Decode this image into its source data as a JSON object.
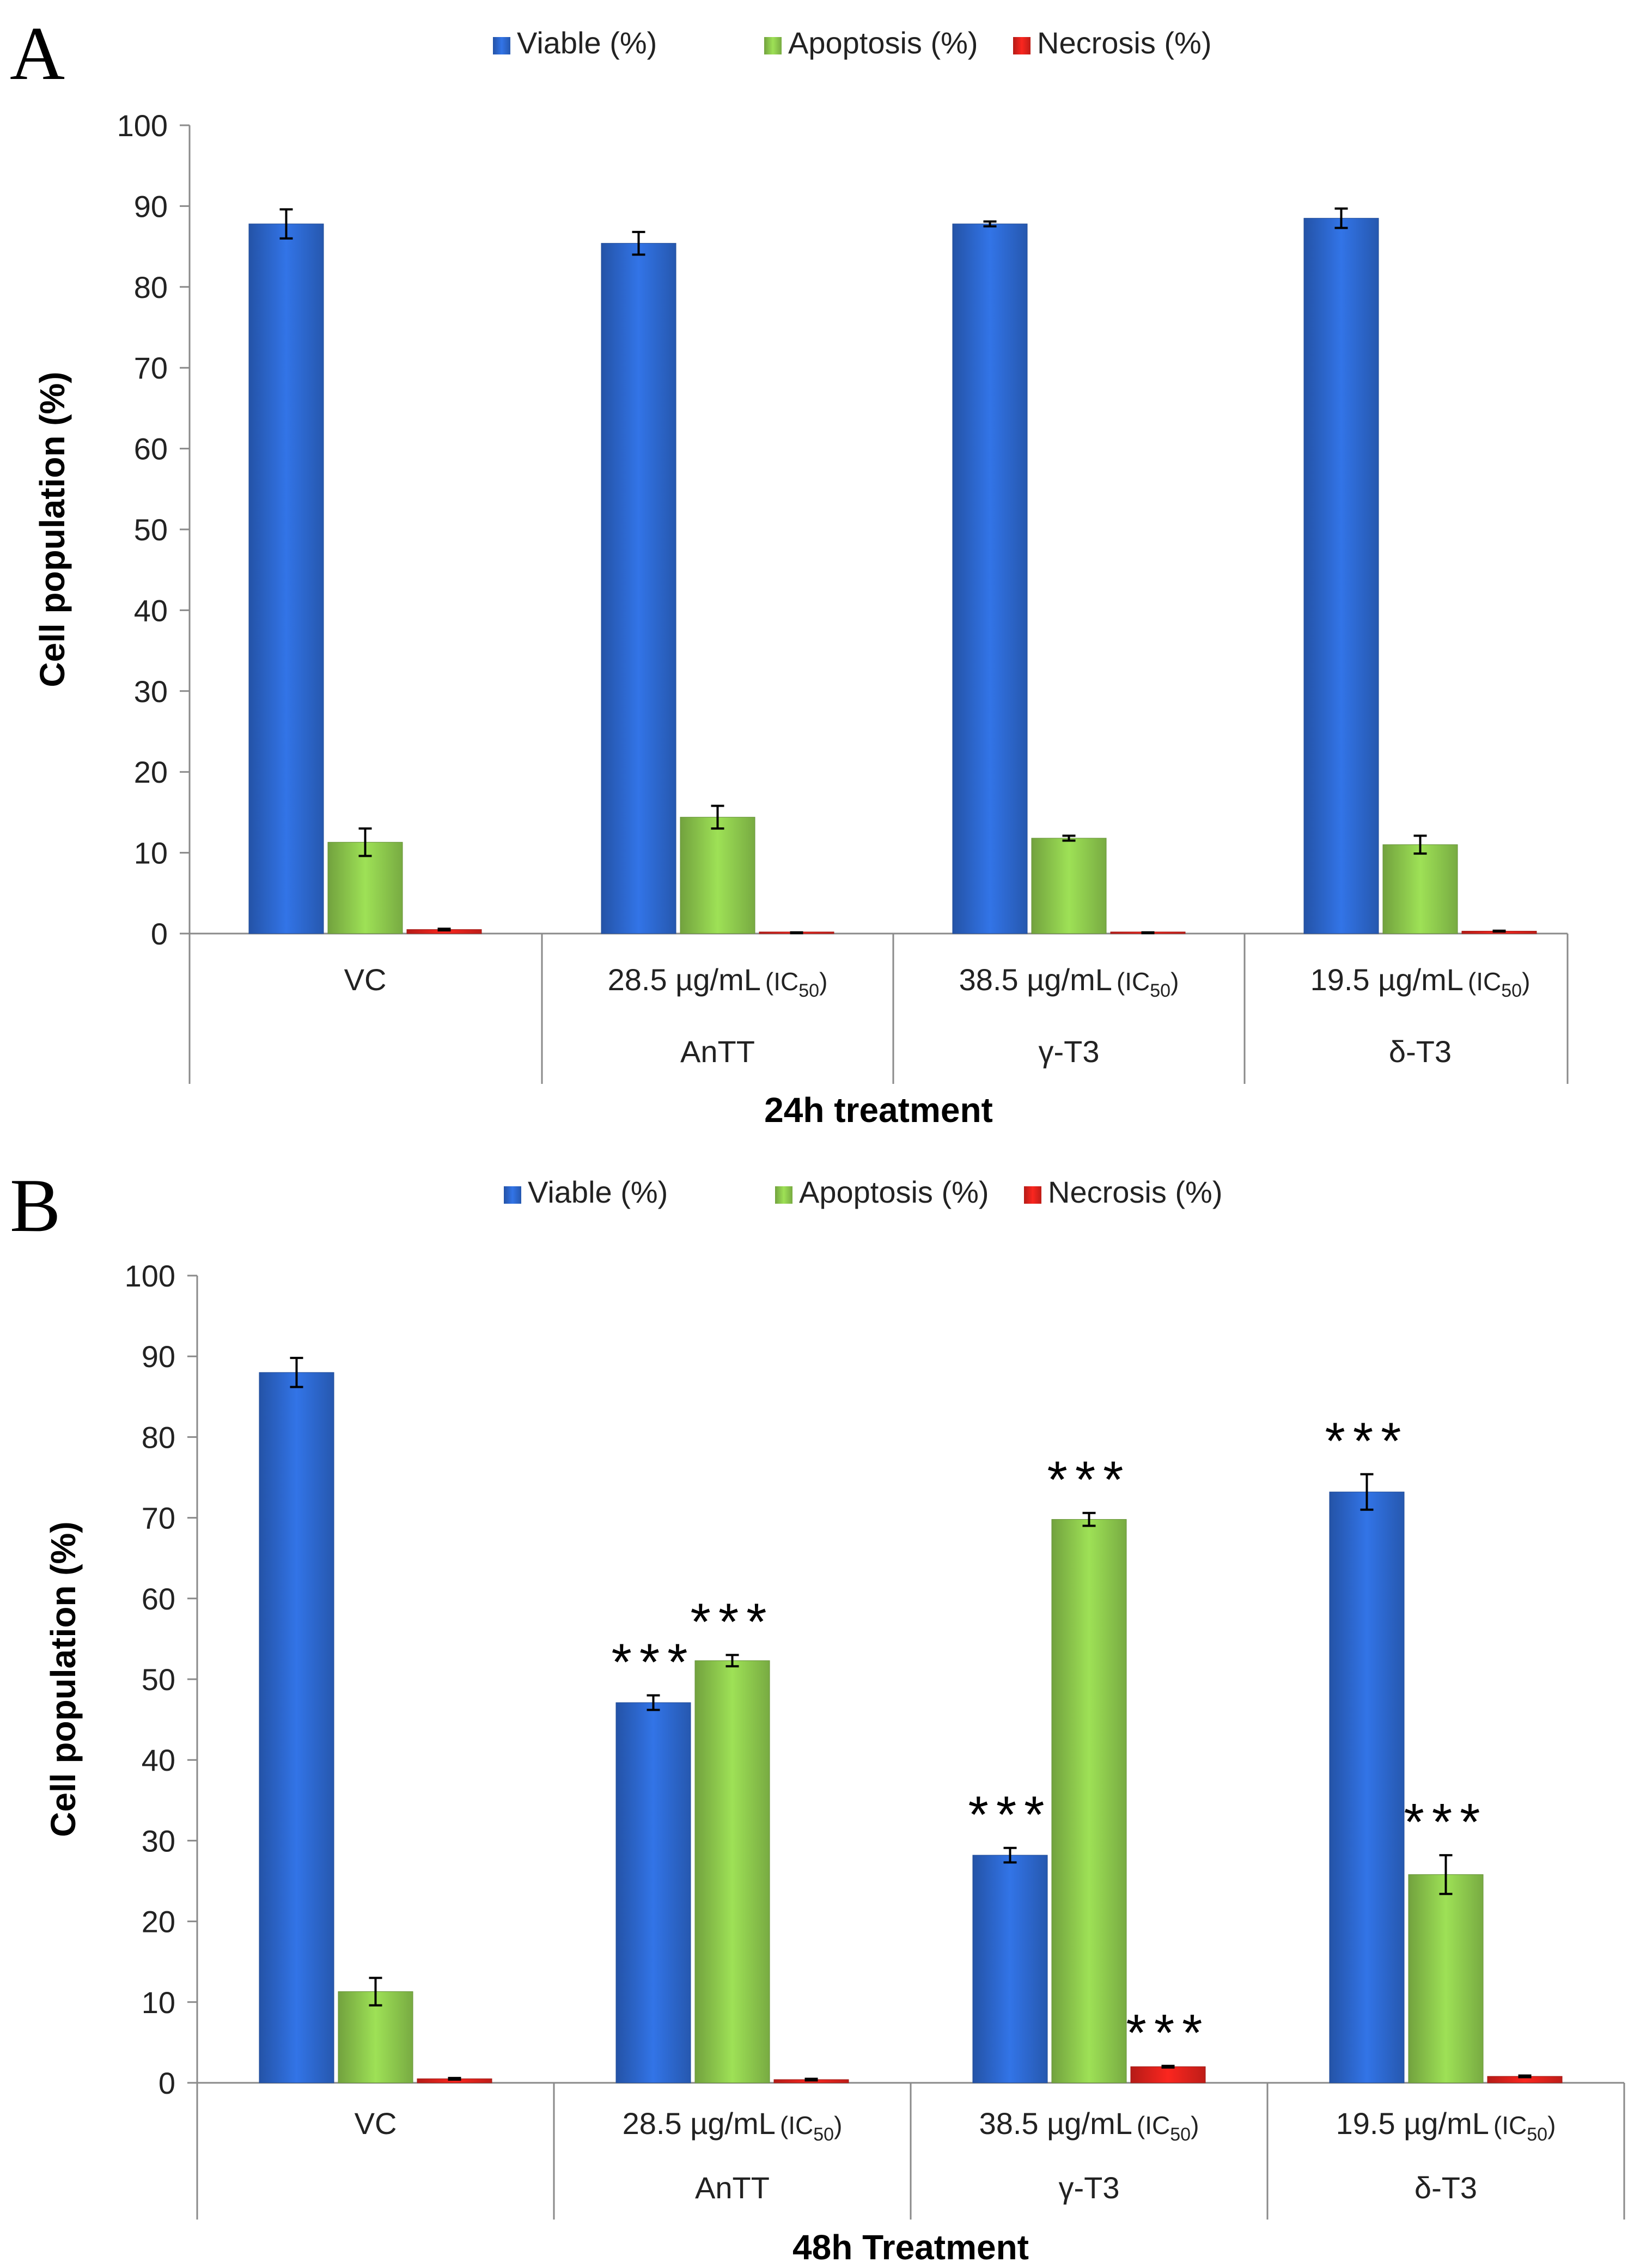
{
  "chart_data": [
    {
      "panel_label": "A",
      "type": "bar",
      "title": "",
      "xlabel": "24h treatment",
      "ylabel": "Cell population (%)",
      "ylim": [
        0,
        100
      ],
      "yticks": [
        0,
        10,
        20,
        30,
        40,
        50,
        60,
        70,
        80,
        90,
        100
      ],
      "grid": false,
      "legend_position": "top-center",
      "groups": [
        {
          "name": "VC",
          "concentration": ""
        },
        {
          "name": "AnTT",
          "concentration": "28.5 µg/mL",
          "ic": "IC",
          "ic_sub": "50"
        },
        {
          "name": "γ-T3",
          "concentration": "38.5 µg/mL",
          "ic": "IC",
          "ic_sub": "50"
        },
        {
          "name": "δ-T3",
          "concentration": "19.5 µg/mL",
          "ic": "IC",
          "ic_sub": "50"
        }
      ],
      "series": [
        {
          "name": "Viable (%)",
          "color": "#2e6bd6",
          "values": [
            87.8,
            85.4,
            87.8,
            88.5
          ],
          "errors": [
            1.8,
            1.4,
            0.3,
            1.2
          ],
          "sig": [
            "",
            "",
            "",
            ""
          ]
        },
        {
          "name": "Apoptosis (%)",
          "color": "#92d050",
          "values": [
            11.3,
            14.4,
            11.8,
            11.0
          ],
          "errors": [
            1.7,
            1.4,
            0.3,
            1.1
          ],
          "sig": [
            "",
            "",
            "",
            ""
          ]
        },
        {
          "name": "Necrosis (%)",
          "color": "#e8231d",
          "values": [
            0.5,
            0.1,
            0.1,
            0.3
          ],
          "errors": [
            0.1,
            0.05,
            0.05,
            0.05
          ],
          "sig": [
            "",
            "",
            "",
            ""
          ]
        }
      ]
    },
    {
      "panel_label": "B",
      "type": "bar",
      "title": "",
      "xlabel": "48h Treatment",
      "ylabel": "Cell population (%)",
      "ylim": [
        0,
        100
      ],
      "yticks": [
        0,
        10,
        20,
        30,
        40,
        50,
        60,
        70,
        80,
        90,
        100
      ],
      "grid": false,
      "legend_position": "top-center",
      "groups": [
        {
          "name": "VC",
          "concentration": ""
        },
        {
          "name": "AnTT",
          "concentration": "28.5 µg/mL",
          "ic": "IC",
          "ic_sub": "50"
        },
        {
          "name": "γ-T3",
          "concentration": "38.5 µg/mL",
          "ic": "IC",
          "ic_sub": "50"
        },
        {
          "name": "δ-T3",
          "concentration": "19.5 µg/mL",
          "ic": "IC",
          "ic_sub": "50"
        }
      ],
      "series": [
        {
          "name": "Viable (%)",
          "color": "#2e6bd6",
          "values": [
            88.0,
            47.1,
            28.2,
            73.2
          ],
          "errors": [
            1.8,
            0.9,
            0.9,
            2.2
          ],
          "sig": [
            "",
            "***",
            "***",
            "***"
          ]
        },
        {
          "name": "Apoptosis (%)",
          "color": "#92d050",
          "values": [
            11.3,
            52.3,
            69.8,
            25.8
          ],
          "errors": [
            1.7,
            0.7,
            0.8,
            2.4
          ],
          "sig": [
            "",
            "***",
            "***",
            "***"
          ]
        },
        {
          "name": "Necrosis (%)",
          "color": "#e8231d",
          "values": [
            0.5,
            0.4,
            2.0,
            0.8
          ],
          "errors": [
            0.1,
            0.1,
            0.1,
            0.1
          ],
          "sig": [
            "",
            "",
            "***",
            ""
          ]
        }
      ]
    }
  ]
}
